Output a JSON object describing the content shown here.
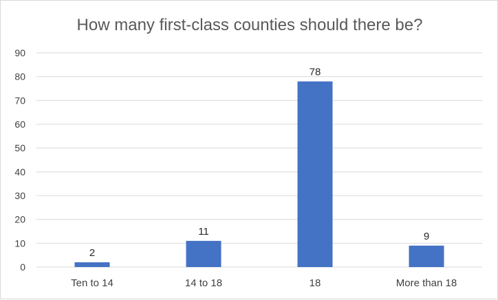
{
  "chart_data": {
    "type": "bar",
    "title": "How many first-class counties should there be?",
    "xlabel": "",
    "ylabel": "",
    "categories": [
      "Ten to 14",
      "14 to 18",
      "18",
      "More than 18"
    ],
    "values": [
      2,
      11,
      78,
      9
    ],
    "yticks": [
      "0",
      "10",
      "20",
      "30",
      "40",
      "50",
      "60",
      "70",
      "80",
      "90"
    ],
    "ylim": [
      0,
      90
    ],
    "grid": true,
    "legend": "none",
    "bar_color": "#4472c4"
  }
}
